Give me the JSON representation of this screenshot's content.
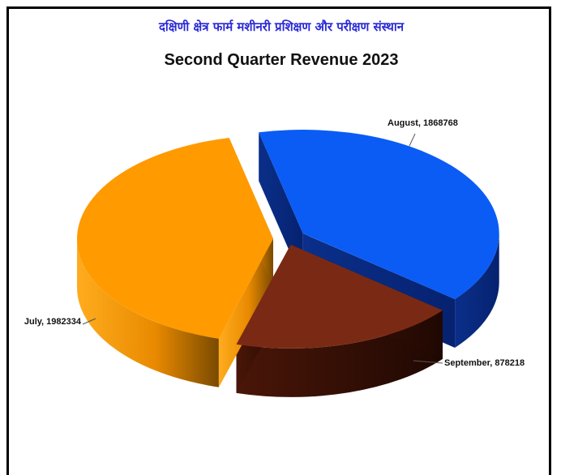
{
  "header": {
    "org_name": "दक्षिणी क्षेत्र फार्म मशीनरी प्रशिक्षण और परीक्षण संस्थान"
  },
  "colors": {
    "org_text": "#2a2ad6",
    "august": "#0a5cf5",
    "september": "#7a2a14",
    "july": "#ff9a00"
  },
  "chart_data": {
    "type": "pie",
    "title": "Second Quarter Revenue 2023",
    "slices": [
      {
        "label": "August",
        "value": 1868768,
        "data_label": "August, 1868768",
        "color": "#0a5cf5"
      },
      {
        "label": "September",
        "value": 878218,
        "data_label": "September, 878218",
        "color": "#7a2a14"
      },
      {
        "label": "July",
        "value": 1982334,
        "data_label": "July, 1982334",
        "color": "#ff9a00"
      }
    ],
    "legend": "none",
    "style": "3d exploded"
  }
}
